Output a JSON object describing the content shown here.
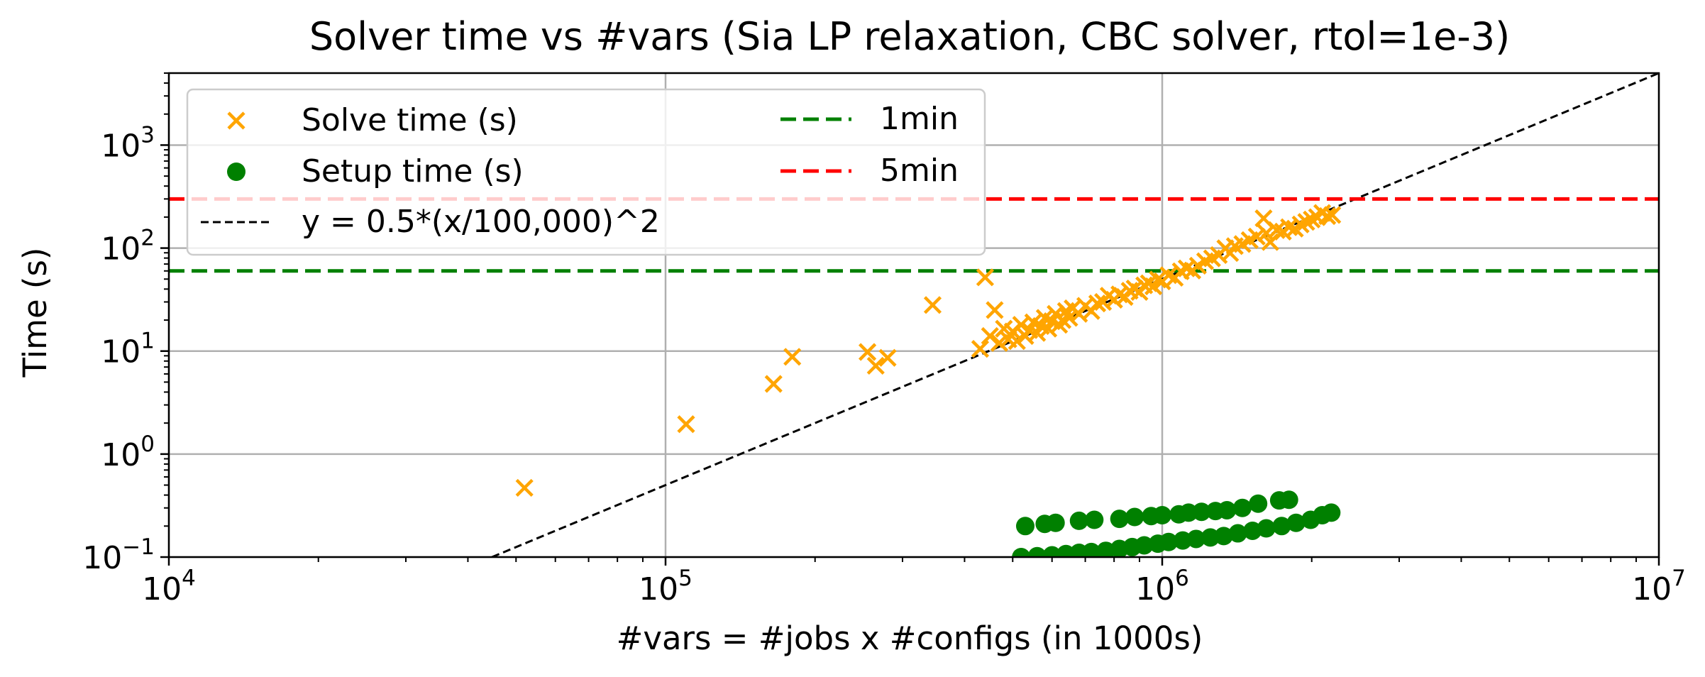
{
  "chart_data": {
    "type": "scatter",
    "title": "Solver time vs #vars (Sia LP relaxation, CBC solver, rtol=1e-3)",
    "xlabel": "#vars = #jobs x #configs (in 1000s)",
    "ylabel": "Time (s)",
    "xscale": "log",
    "yscale": "log",
    "xlim": [
      10000,
      10000000
    ],
    "ylim": [
      0.1,
      5000
    ],
    "grid": true,
    "legend_position": "top-left",
    "x_ticks": [
      {
        "value": 10000,
        "base": "10",
        "exp": "4"
      },
      {
        "value": 100000,
        "base": "10",
        "exp": "5"
      },
      {
        "value": 1000000,
        "base": "10",
        "exp": "6"
      },
      {
        "value": 10000000,
        "base": "10",
        "exp": "7"
      }
    ],
    "y_ticks": [
      {
        "value": 0.1,
        "base": "10",
        "exp": "−1"
      },
      {
        "value": 1,
        "base": "10",
        "exp": "0"
      },
      {
        "value": 10,
        "base": "10",
        "exp": "1"
      },
      {
        "value": 100,
        "base": "10",
        "exp": "2"
      },
      {
        "value": 1000,
        "base": "10",
        "exp": "3"
      }
    ],
    "series": [
      {
        "name": "Solve time (s)",
        "marker": "x",
        "color": "#ffa500",
        "points": [
          [
            52000,
            0.47
          ],
          [
            110000,
            1.95
          ],
          [
            165000,
            4.8
          ],
          [
            180000,
            8.8
          ],
          [
            255000,
            9.8
          ],
          [
            265000,
            7.2
          ],
          [
            280000,
            8.6
          ],
          [
            345000,
            28.0
          ],
          [
            440000,
            52.0
          ],
          [
            430000,
            10.5
          ],
          [
            460000,
            25.0
          ],
          [
            450000,
            14.0
          ],
          [
            470000,
            12.0
          ],
          [
            480000,
            16.5
          ],
          [
            490000,
            13.0
          ],
          [
            500000,
            15.5
          ],
          [
            510000,
            12.5
          ],
          [
            520000,
            18.0
          ],
          [
            530000,
            14.0
          ],
          [
            540000,
            16.0
          ],
          [
            550000,
            19.0
          ],
          [
            560000,
            15.0
          ],
          [
            570000,
            17.5
          ],
          [
            580000,
            21.0
          ],
          [
            590000,
            16.5
          ],
          [
            600000,
            19.5
          ],
          [
            610000,
            23.0
          ],
          [
            620000,
            18.0
          ],
          [
            630000,
            20.0
          ],
          [
            640000,
            24.5
          ],
          [
            650000,
            21.0
          ],
          [
            660000,
            26.0
          ],
          [
            680000,
            23.0
          ],
          [
            700000,
            27.5
          ],
          [
            720000,
            24.5
          ],
          [
            740000,
            29.0
          ],
          [
            760000,
            30.0
          ],
          [
            780000,
            34.5
          ],
          [
            800000,
            31.5
          ],
          [
            820000,
            35.5
          ],
          [
            840000,
            33.5
          ],
          [
            860000,
            38.5
          ],
          [
            880000,
            40.5
          ],
          [
            900000,
            37.5
          ],
          [
            920000,
            43.5
          ],
          [
            940000,
            45.5
          ],
          [
            960000,
            42.5
          ],
          [
            980000,
            49.5
          ],
          [
            1000000,
            47.5
          ],
          [
            1030000,
            54.5
          ],
          [
            1060000,
            51.5
          ],
          [
            1090000,
            59.5
          ],
          [
            1120000,
            63.5
          ],
          [
            1150000,
            60.5
          ],
          [
            1180000,
            67.5
          ],
          [
            1220000,
            74.5
          ],
          [
            1260000,
            79.5
          ],
          [
            1300000,
            85.5
          ],
          [
            1340000,
            99.5
          ],
          [
            1370000,
            89.5
          ],
          [
            1400000,
            104.5
          ],
          [
            1450000,
            109.5
          ],
          [
            1500000,
            119.5
          ],
          [
            1550000,
            129.5
          ],
          [
            1600000,
            194.5
          ],
          [
            1620000,
            139.5
          ],
          [
            1650000,
            114.5
          ],
          [
            1700000,
            149.5
          ],
          [
            1750000,
            144.5
          ],
          [
            1800000,
            159.5
          ],
          [
            1850000,
            154.5
          ],
          [
            1900000,
            169.5
          ],
          [
            1950000,
            179.5
          ],
          [
            2000000,
            189.5
          ],
          [
            2050000,
            199.5
          ],
          [
            2100000,
            219.5
          ],
          [
            2150000,
            204.5
          ],
          [
            2200000,
            209.5
          ]
        ]
      },
      {
        "name": "Setup time (s)",
        "marker": "o",
        "color": "#008000",
        "points": [
          [
            530000,
            0.2
          ],
          [
            580000,
            0.21
          ],
          [
            610000,
            0.215
          ],
          [
            680000,
            0.225
          ],
          [
            730000,
            0.23
          ],
          [
            820000,
            0.235
          ],
          [
            880000,
            0.245
          ],
          [
            950000,
            0.25
          ],
          [
            1000000,
            0.255
          ],
          [
            1080000,
            0.26
          ],
          [
            1130000,
            0.27
          ],
          [
            1200000,
            0.275
          ],
          [
            1280000,
            0.28
          ],
          [
            1350000,
            0.285
          ],
          [
            1450000,
            0.3
          ],
          [
            1560000,
            0.33
          ],
          [
            1720000,
            0.355
          ],
          [
            1800000,
            0.36
          ],
          [
            520000,
            0.1
          ],
          [
            560000,
            0.102
          ],
          [
            600000,
            0.104
          ],
          [
            640000,
            0.107
          ],
          [
            680000,
            0.11
          ],
          [
            720000,
            0.112
          ],
          [
            770000,
            0.115
          ],
          [
            820000,
            0.12
          ],
          [
            870000,
            0.125
          ],
          [
            920000,
            0.13
          ],
          [
            980000,
            0.135
          ],
          [
            1030000,
            0.14
          ],
          [
            1100000,
            0.145
          ],
          [
            1170000,
            0.15
          ],
          [
            1250000,
            0.155
          ],
          [
            1330000,
            0.16
          ],
          [
            1420000,
            0.17
          ],
          [
            1520000,
            0.18
          ],
          [
            1620000,
            0.19
          ],
          [
            1740000,
            0.2
          ],
          [
            1860000,
            0.215
          ],
          [
            1990000,
            0.23
          ],
          [
            2100000,
            0.255
          ],
          [
            2190000,
            0.27
          ]
        ]
      }
    ],
    "lines": [
      {
        "name": "y = 0.5*(x/100,000)^2",
        "kind": "curve",
        "coef": 0.5,
        "scale": 100000,
        "power": 2,
        "color": "#000000",
        "dash": "short"
      },
      {
        "name": "1min",
        "kind": "hline",
        "y": 60,
        "color": "#008000",
        "dash": "long"
      },
      {
        "name": "5min",
        "kind": "hline",
        "y": 300,
        "color": "#ff0000",
        "dash": "long"
      }
    ]
  }
}
